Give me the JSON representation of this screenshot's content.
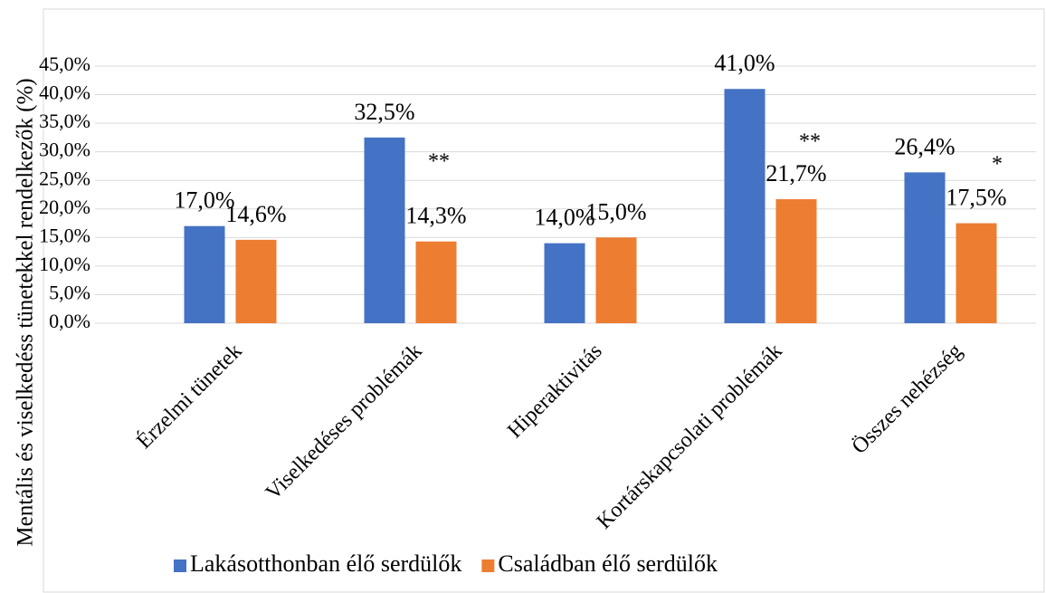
{
  "chart_data": {
    "type": "bar",
    "y_axis_label": "Mentális és viselkedéss tünetekkel rendelkezők (%)",
    "categories": [
      "Érzelmi tünetek",
      "Viselkedéses problémák",
      "Hiperaktivitás",
      "Kortárskapcsolati problémák",
      "Összes nehézség"
    ],
    "series": [
      {
        "name": "Lakásotthonban élő serdülők",
        "color": "#4472c4",
        "values": [
          17.0,
          32.5,
          14.0,
          41.0,
          26.4
        ],
        "value_labels": [
          "17,0%",
          "32,5%",
          "14,0%",
          "41,0%",
          "26,4%"
        ]
      },
      {
        "name": "Családban élő serdülők",
        "color": "#ed7d31",
        "values": [
          14.6,
          14.3,
          15.0,
          21.7,
          17.5
        ],
        "value_labels": [
          "14,6%",
          "14,3%",
          "15,0%",
          "21,7%",
          "17,5%"
        ]
      }
    ],
    "annotations": [
      "**",
      "**",
      "*"
    ],
    "ylim": [
      0,
      45
    ],
    "yticks": [
      {
        "value": 0,
        "label": "0,0%"
      },
      {
        "value": 5,
        "label": "5,0%"
      },
      {
        "value": 10,
        "label": "10,0%"
      },
      {
        "value": 15,
        "label": "15,0%"
      },
      {
        "value": 20,
        "label": "20,0%"
      },
      {
        "value": 25,
        "label": "25,0%"
      },
      {
        "value": 30,
        "label": "30,0%"
      },
      {
        "value": 35,
        "label": "35,0%"
      },
      {
        "value": 40,
        "label": "40,0%"
      },
      {
        "value": 45,
        "label": "45,0%"
      }
    ],
    "grid": true,
    "legend": "bottom"
  }
}
